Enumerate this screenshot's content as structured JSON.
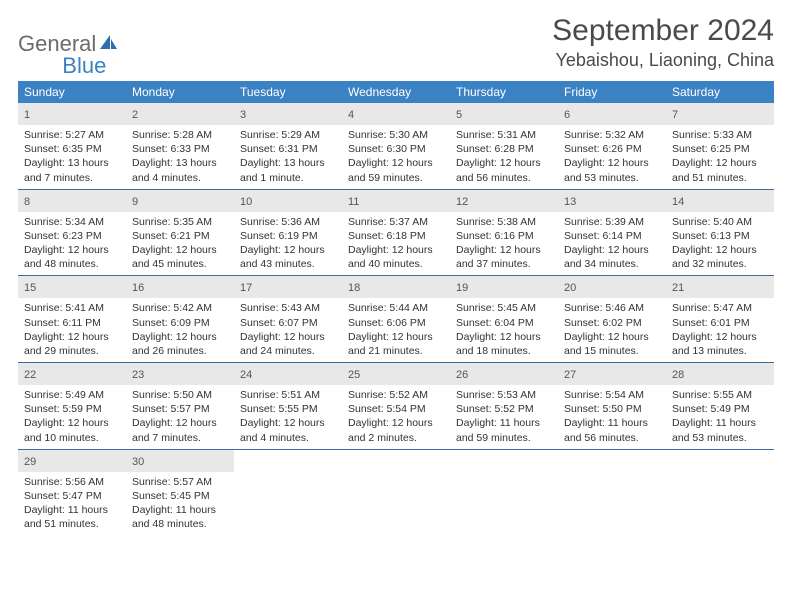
{
  "brand": {
    "part1": "General",
    "part2": "Blue"
  },
  "title": "September 2024",
  "location": "Yebaishou, Liaoning, China",
  "colors": {
    "header_bg": "#3b82c4",
    "header_text": "#ffffff",
    "daynum_bg": "#e8e8e8",
    "week_border": "#3b6ea0",
    "logo_gray": "#6b6b6b",
    "logo_blue": "#3b82c4",
    "page_bg": "#ffffff",
    "text": "#333333"
  },
  "weekdays": [
    "Sunday",
    "Monday",
    "Tuesday",
    "Wednesday",
    "Thursday",
    "Friday",
    "Saturday"
  ],
  "days": [
    {
      "n": "1",
      "sunrise": "5:27 AM",
      "sunset": "6:35 PM",
      "daylight": "13 hours and 7 minutes."
    },
    {
      "n": "2",
      "sunrise": "5:28 AM",
      "sunset": "6:33 PM",
      "daylight": "13 hours and 4 minutes."
    },
    {
      "n": "3",
      "sunrise": "5:29 AM",
      "sunset": "6:31 PM",
      "daylight": "13 hours and 1 minute."
    },
    {
      "n": "4",
      "sunrise": "5:30 AM",
      "sunset": "6:30 PM",
      "daylight": "12 hours and 59 minutes."
    },
    {
      "n": "5",
      "sunrise": "5:31 AM",
      "sunset": "6:28 PM",
      "daylight": "12 hours and 56 minutes."
    },
    {
      "n": "6",
      "sunrise": "5:32 AM",
      "sunset": "6:26 PM",
      "daylight": "12 hours and 53 minutes."
    },
    {
      "n": "7",
      "sunrise": "5:33 AM",
      "sunset": "6:25 PM",
      "daylight": "12 hours and 51 minutes."
    },
    {
      "n": "8",
      "sunrise": "5:34 AM",
      "sunset": "6:23 PM",
      "daylight": "12 hours and 48 minutes."
    },
    {
      "n": "9",
      "sunrise": "5:35 AM",
      "sunset": "6:21 PM",
      "daylight": "12 hours and 45 minutes."
    },
    {
      "n": "10",
      "sunrise": "5:36 AM",
      "sunset": "6:19 PM",
      "daylight": "12 hours and 43 minutes."
    },
    {
      "n": "11",
      "sunrise": "5:37 AM",
      "sunset": "6:18 PM",
      "daylight": "12 hours and 40 minutes."
    },
    {
      "n": "12",
      "sunrise": "5:38 AM",
      "sunset": "6:16 PM",
      "daylight": "12 hours and 37 minutes."
    },
    {
      "n": "13",
      "sunrise": "5:39 AM",
      "sunset": "6:14 PM",
      "daylight": "12 hours and 34 minutes."
    },
    {
      "n": "14",
      "sunrise": "5:40 AM",
      "sunset": "6:13 PM",
      "daylight": "12 hours and 32 minutes."
    },
    {
      "n": "15",
      "sunrise": "5:41 AM",
      "sunset": "6:11 PM",
      "daylight": "12 hours and 29 minutes."
    },
    {
      "n": "16",
      "sunrise": "5:42 AM",
      "sunset": "6:09 PM",
      "daylight": "12 hours and 26 minutes."
    },
    {
      "n": "17",
      "sunrise": "5:43 AM",
      "sunset": "6:07 PM",
      "daylight": "12 hours and 24 minutes."
    },
    {
      "n": "18",
      "sunrise": "5:44 AM",
      "sunset": "6:06 PM",
      "daylight": "12 hours and 21 minutes."
    },
    {
      "n": "19",
      "sunrise": "5:45 AM",
      "sunset": "6:04 PM",
      "daylight": "12 hours and 18 minutes."
    },
    {
      "n": "20",
      "sunrise": "5:46 AM",
      "sunset": "6:02 PM",
      "daylight": "12 hours and 15 minutes."
    },
    {
      "n": "21",
      "sunrise": "5:47 AM",
      "sunset": "6:01 PM",
      "daylight": "12 hours and 13 minutes."
    },
    {
      "n": "22",
      "sunrise": "5:49 AM",
      "sunset": "5:59 PM",
      "daylight": "12 hours and 10 minutes."
    },
    {
      "n": "23",
      "sunrise": "5:50 AM",
      "sunset": "5:57 PM",
      "daylight": "12 hours and 7 minutes."
    },
    {
      "n": "24",
      "sunrise": "5:51 AM",
      "sunset": "5:55 PM",
      "daylight": "12 hours and 4 minutes."
    },
    {
      "n": "25",
      "sunrise": "5:52 AM",
      "sunset": "5:54 PM",
      "daylight": "12 hours and 2 minutes."
    },
    {
      "n": "26",
      "sunrise": "5:53 AM",
      "sunset": "5:52 PM",
      "daylight": "11 hours and 59 minutes."
    },
    {
      "n": "27",
      "sunrise": "5:54 AM",
      "sunset": "5:50 PM",
      "daylight": "11 hours and 56 minutes."
    },
    {
      "n": "28",
      "sunrise": "5:55 AM",
      "sunset": "5:49 PM",
      "daylight": "11 hours and 53 minutes."
    },
    {
      "n": "29",
      "sunrise": "5:56 AM",
      "sunset": "5:47 PM",
      "daylight": "11 hours and 51 minutes."
    },
    {
      "n": "30",
      "sunrise": "5:57 AM",
      "sunset": "5:45 PM",
      "daylight": "11 hours and 48 minutes."
    }
  ],
  "labels": {
    "sunrise": "Sunrise:",
    "sunset": "Sunset:",
    "daylight": "Daylight:"
  },
  "layout": {
    "first_weekday_index": 0,
    "total_cells": 35
  }
}
